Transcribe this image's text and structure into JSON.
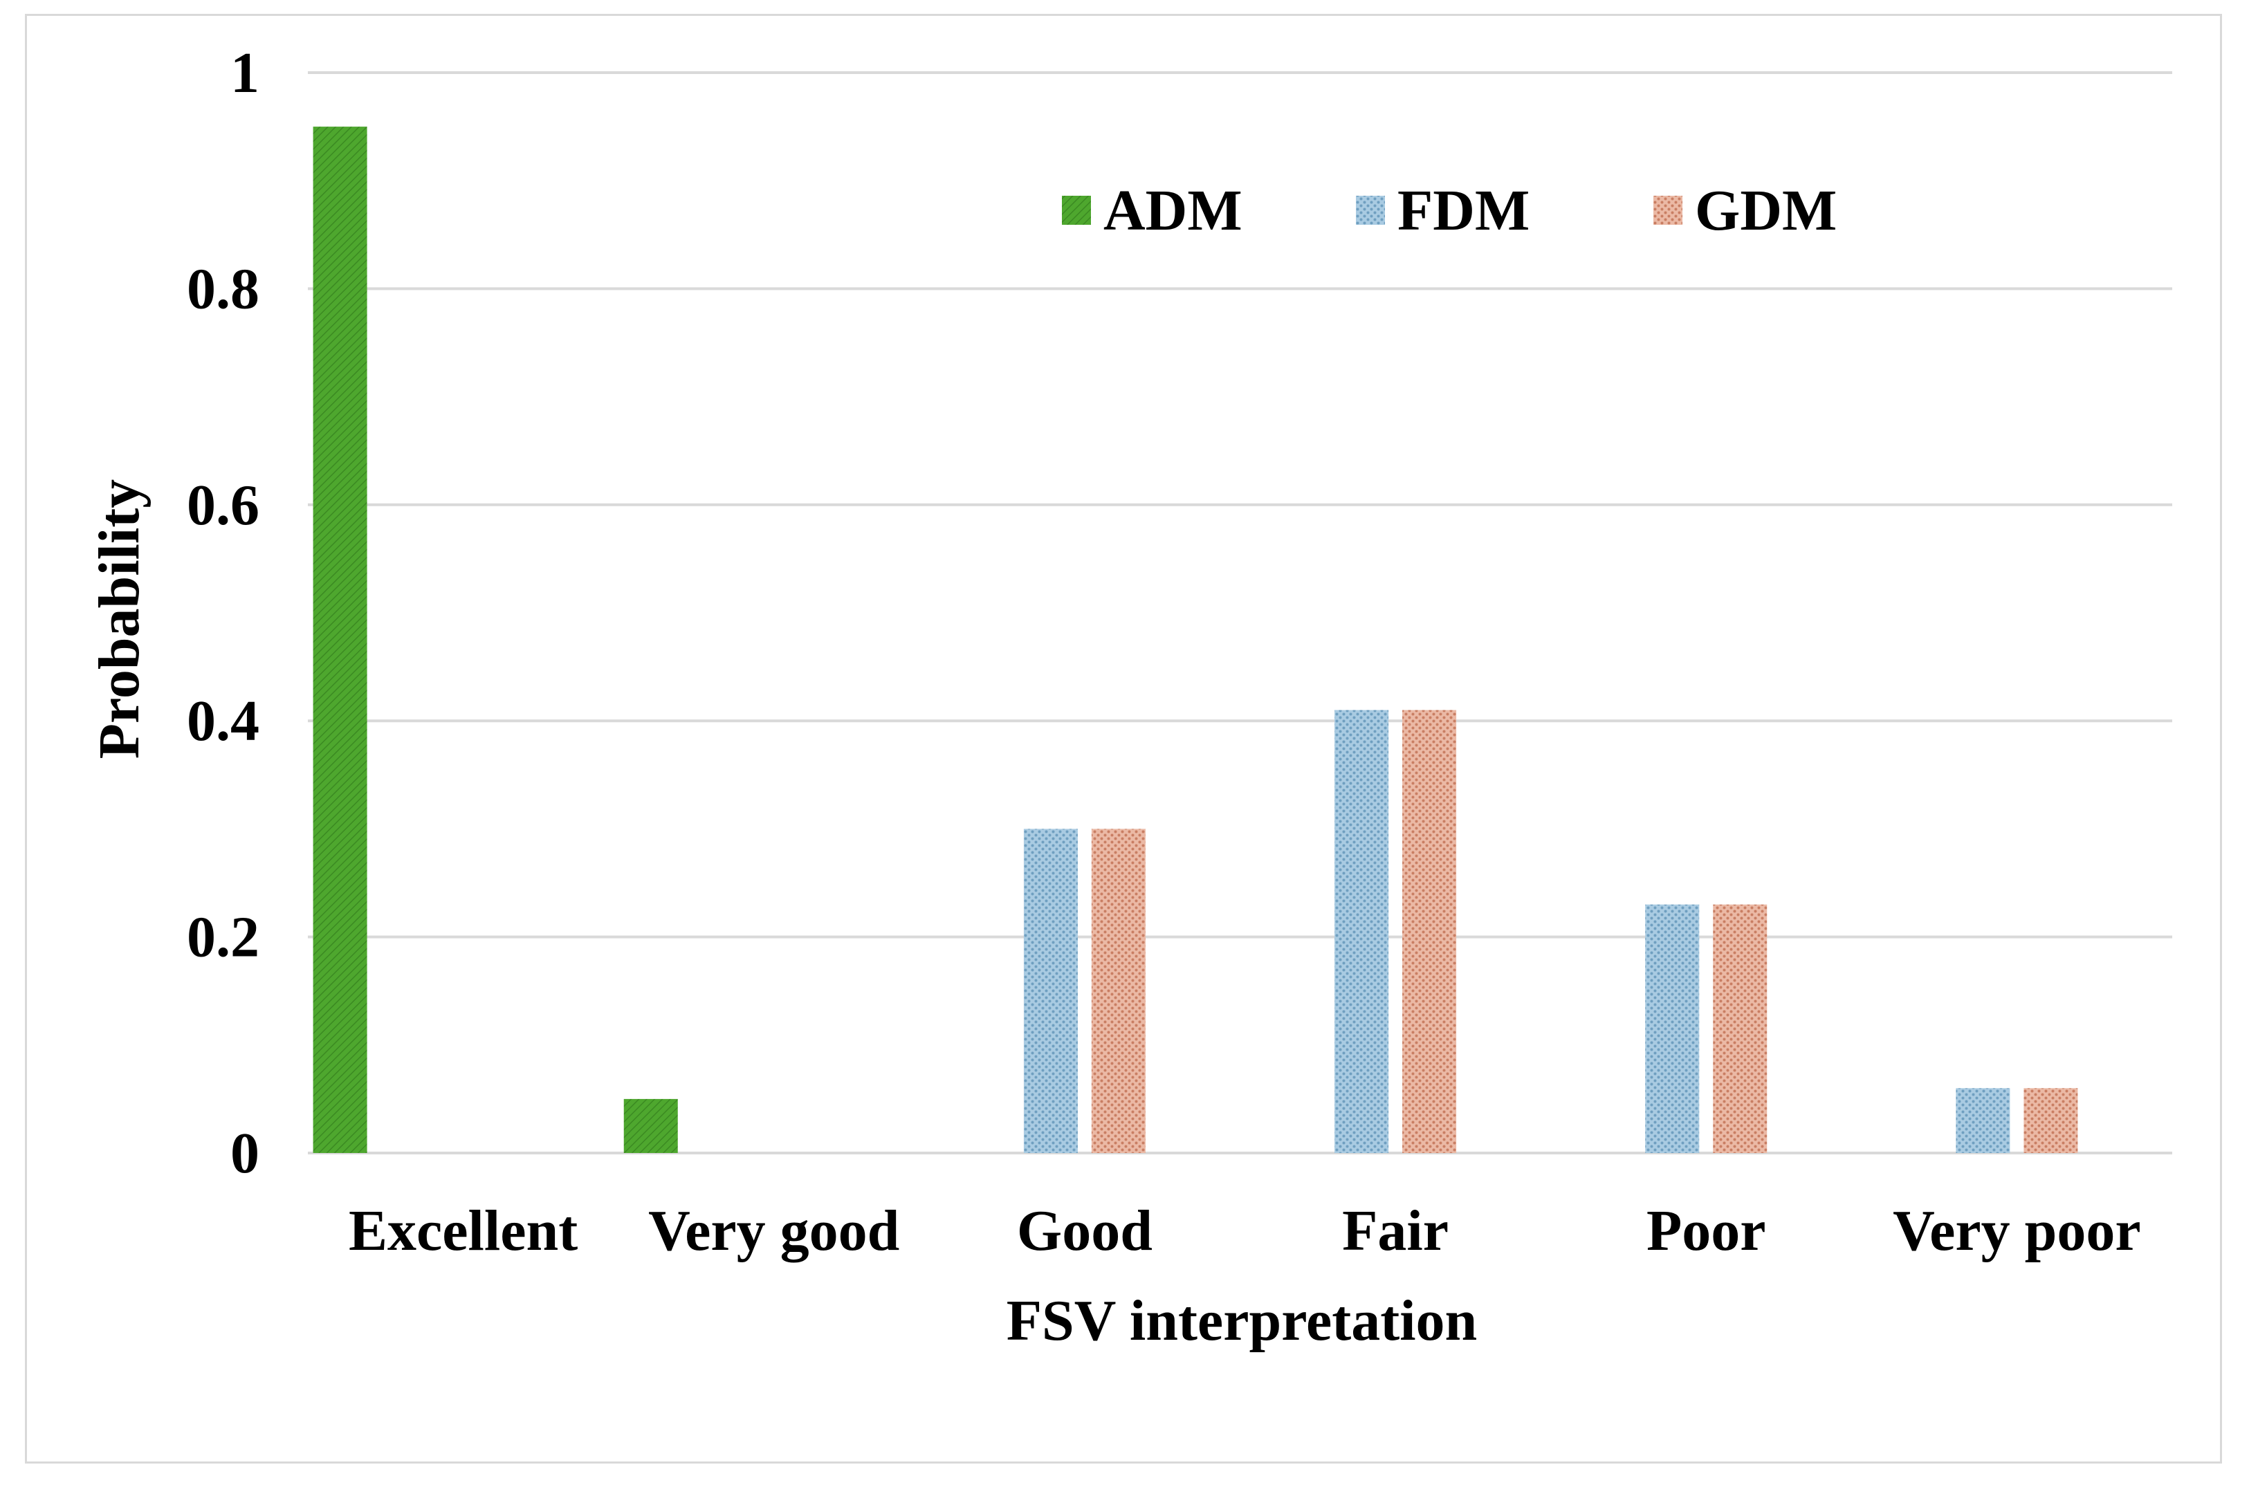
{
  "chart_data": {
    "type": "bar",
    "title": "",
    "xlabel": "FSV interpretation",
    "ylabel": "Probability",
    "ylim": [
      0,
      1
    ],
    "yticks": [
      0,
      0.2,
      0.4,
      0.6,
      0.8,
      1
    ],
    "ytick_labels": [
      "0",
      "0.2",
      "0.4",
      "0.6",
      "0.8",
      "1"
    ],
    "grid": true,
    "legend_position": "top-center",
    "categories": [
      "Excellent",
      "Very good",
      "Good",
      "Fair",
      "Poor",
      "Very poor"
    ],
    "series": [
      {
        "name": "ADM",
        "color": "#4ea72e",
        "pattern": "diagonal-hatch",
        "values": [
          0.95,
          0.05,
          0,
          0,
          0,
          0
        ]
      },
      {
        "name": "FDM",
        "color": "#9ec3dc",
        "pattern": "dotted-weave",
        "values": [
          0,
          0,
          0.3,
          0.41,
          0.23,
          0.06
        ]
      },
      {
        "name": "GDM",
        "color": "#e0a790",
        "pattern": "dotted-weave",
        "values": [
          0,
          0,
          0.3,
          0.41,
          0.23,
          0.06
        ]
      }
    ]
  }
}
